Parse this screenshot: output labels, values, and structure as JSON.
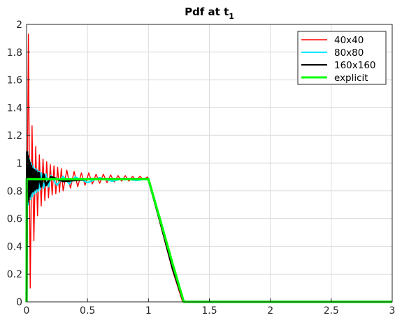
{
  "chart_data": {
    "type": "line",
    "title": "Pdf at t",
    "title_subscript": "1",
    "xlim": [
      0,
      3
    ],
    "ylim": [
      0,
      2
    ],
    "xticks": [
      0,
      0.5,
      1,
      1.5,
      2,
      2.5,
      3
    ],
    "xtick_labels": [
      "0",
      "0.5",
      "1",
      "1.5",
      "2",
      "2.5",
      "3"
    ],
    "yticks": [
      0,
      0.2,
      0.4,
      0.6,
      0.8,
      1,
      1.2,
      1.4,
      1.6,
      1.8,
      2
    ],
    "ytick_labels": [
      "0",
      "0.2",
      "0.4",
      "0.6",
      "0.8",
      "1",
      "1.2",
      "1.4",
      "1.6",
      "1.8",
      "2"
    ],
    "grid": true,
    "legend_position": "top-right",
    "series": [
      {
        "name": "40x40",
        "color": "#ff0000",
        "x": [
          0,
          0.015,
          0.03,
          0.045,
          0.06,
          0.075,
          0.09,
          0.105,
          0.12,
          0.135,
          0.15,
          0.165,
          0.18,
          0.195,
          0.21,
          0.225,
          0.24,
          0.255,
          0.27,
          0.285,
          0.3,
          0.33,
          0.36,
          0.39,
          0.42,
          0.45,
          0.48,
          0.51,
          0.54,
          0.57,
          0.6,
          0.63,
          0.66,
          0.69,
          0.72,
          0.75,
          0.78,
          0.81,
          0.84,
          0.87,
          0.9,
          0.93,
          0.96,
          0.99,
          1.0,
          1.1,
          1.2,
          1.28,
          1.35,
          2.0,
          3.0
        ],
        "y": [
          0,
          1.93,
          0.1,
          1.27,
          0.44,
          1.12,
          0.62,
          1.06,
          0.69,
          1.03,
          0.73,
          1.01,
          0.75,
          0.99,
          0.77,
          0.98,
          0.78,
          0.97,
          0.79,
          0.96,
          0.8,
          0.95,
          0.82,
          0.94,
          0.83,
          0.93,
          0.84,
          0.93,
          0.85,
          0.92,
          0.855,
          0.92,
          0.86,
          0.915,
          0.865,
          0.91,
          0.87,
          0.91,
          0.87,
          0.905,
          0.875,
          0.905,
          0.88,
          0.9,
          0.89,
          0.55,
          0.22,
          0,
          0,
          0,
          0
        ]
      },
      {
        "name": "80x80",
        "color": "#00e5ff",
        "x": [
          0,
          0.008,
          0.016,
          0.024,
          0.032,
          0.04,
          0.048,
          0.056,
          0.064,
          0.072,
          0.08,
          0.088,
          0.096,
          0.104,
          0.112,
          0.12,
          0.14,
          0.16,
          0.18,
          0.2,
          0.25,
          0.3,
          0.35,
          0.4,
          0.5,
          0.6,
          0.7,
          0.8,
          0.9,
          1.0,
          1.1,
          1.2,
          1.29,
          1.4,
          2.0,
          3.0
        ],
        "y": [
          0,
          1.08,
          0.7,
          1.03,
          0.74,
          1.0,
          0.76,
          0.98,
          0.78,
          0.96,
          0.79,
          0.95,
          0.8,
          0.94,
          0.81,
          0.93,
          0.82,
          0.92,
          0.83,
          0.91,
          0.84,
          0.905,
          0.85,
          0.9,
          0.86,
          0.895,
          0.87,
          0.89,
          0.875,
          0.89,
          0.57,
          0.24,
          0,
          0,
          0,
          0
        ]
      },
      {
        "name": "160x160",
        "color": "#000000",
        "x": [
          0,
          0.004,
          0.008,
          0.012,
          0.016,
          0.02,
          0.024,
          0.028,
          0.032,
          0.036,
          0.04,
          0.048,
          0.056,
          0.064,
          0.072,
          0.08,
          0.09,
          0.1,
          0.12,
          0.14,
          0.16,
          0.2,
          0.3,
          0.5,
          0.8,
          1.0,
          1.1,
          1.2,
          1.29,
          1.4,
          2.0,
          3.0
        ],
        "y": [
          0,
          1.08,
          0.72,
          1.05,
          0.74,
          1.02,
          0.76,
          1.0,
          0.78,
          0.98,
          0.79,
          0.96,
          0.8,
          0.95,
          0.81,
          0.94,
          0.82,
          0.93,
          0.83,
          0.92,
          0.84,
          0.9,
          0.87,
          0.885,
          0.885,
          0.885,
          0.57,
          0.24,
          0,
          0,
          0,
          0
        ]
      },
      {
        "name": "explicit",
        "color": "#00ff00",
        "x": [
          0,
          0.001,
          1.0,
          1.1,
          1.2,
          1.29,
          2.0,
          3.0
        ],
        "y": [
          0,
          0.885,
          0.885,
          0.58,
          0.27,
          0,
          0,
          0
        ]
      }
    ]
  }
}
